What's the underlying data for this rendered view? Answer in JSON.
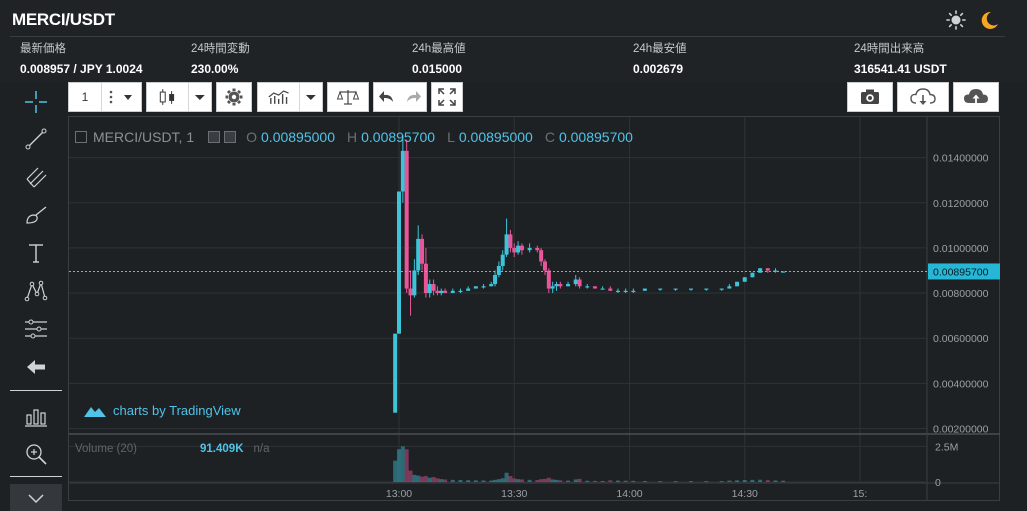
{
  "header": {
    "pair": "MERCI/USDT",
    "stats": [
      {
        "label": "最新価格",
        "value": "0.008957 / JPY 1.0024"
      },
      {
        "label": "24時間変動",
        "value": "230.00%"
      },
      {
        "label": "24h最高値",
        "value": "0.015000"
      },
      {
        "label": "24h最安値",
        "value": "0.002679"
      },
      {
        "label": "24時間出来高",
        "value": "316541.41 USDT"
      }
    ],
    "icons": [
      "sun-icon",
      "moon-icon"
    ]
  },
  "toolbar": {
    "interval_value": "1",
    "buttons": [
      "interval-select",
      "candle-style",
      "settings",
      "indicators",
      "compare",
      "undo",
      "redo",
      "fullscreen",
      "snapshot",
      "load-chart",
      "save-chart"
    ]
  },
  "left_tools": [
    "crosshair-icon",
    "trend-line-icon",
    "pitchfork-icon",
    "brush-icon",
    "text-icon",
    "pattern-icon",
    "measure-icon",
    "back-arrow-icon",
    "bar-chart-icon",
    "zoom-icon",
    "chevron-down-icon"
  ],
  "legend": {
    "symbol": "MERCI/USDT, 1",
    "o_label": "O",
    "o_value": "0.00895000",
    "h_label": "H",
    "h_value": "0.00895700",
    "l_label": "L",
    "l_value": "0.00895000",
    "c_label": "C",
    "c_value": "0.00895700"
  },
  "volume_legend": {
    "label": "Volume (20)",
    "value": "91.409K",
    "extra": "n/a"
  },
  "watermark": "charts by TradingView",
  "colors": {
    "up": "#3cc4d8",
    "down": "#e8569a",
    "grid": "#2e3236",
    "axis_text": "#9aa0a6",
    "price_line": "#4fc3e8"
  },
  "chart_data": {
    "type": "candlestick",
    "title": "MERCI/USDT, 1",
    "price_axis_ticks": [
      "0.01400000",
      "0.01200000",
      "0.01000000",
      "0.00800000",
      "0.00600000",
      "0.00400000",
      "0.00200000"
    ],
    "price_axis_range": [
      0.0018,
      0.0158
    ],
    "last_price_label": "0.00895700",
    "last_price": 0.008957,
    "volume_axis_ticks": [
      "2.5M",
      "0"
    ],
    "volume_axis_range": [
      0,
      3300000
    ],
    "time_axis_ticks": [
      "13:00",
      "13:30",
      "14:00",
      "14:30",
      "15:"
    ],
    "time_axis_start_minute": 780,
    "time_axis_end_minute": 901,
    "candles": [
      {
        "t": 779,
        "o": 0.0027,
        "h": 0.0062,
        "l": 0.0027,
        "c": 0.0062,
        "v": 1500000
      },
      {
        "t": 780,
        "o": 0.0062,
        "h": 0.0125,
        "l": 0.0062,
        "c": 0.0125,
        "v": 2300000
      },
      {
        "t": 781,
        "o": 0.0125,
        "h": 0.015,
        "l": 0.012,
        "c": 0.0143,
        "v": 2500000
      },
      {
        "t": 782,
        "o": 0.0143,
        "h": 0.0148,
        "l": 0.008,
        "c": 0.0082,
        "v": 2300000
      },
      {
        "t": 783,
        "o": 0.0082,
        "h": 0.009,
        "l": 0.007,
        "c": 0.0079,
        "v": 800000
      },
      {
        "t": 784,
        "o": 0.0079,
        "h": 0.0095,
        "l": 0.0078,
        "c": 0.009,
        "v": 500000
      },
      {
        "t": 785,
        "o": 0.009,
        "h": 0.011,
        "l": 0.0088,
        "c": 0.0104,
        "v": 450000
      },
      {
        "t": 786,
        "o": 0.0104,
        "h": 0.0106,
        "l": 0.009,
        "c": 0.0093,
        "v": 380000
      },
      {
        "t": 787,
        "o": 0.0093,
        "h": 0.01,
        "l": 0.0078,
        "c": 0.008,
        "v": 420000
      },
      {
        "t": 788,
        "o": 0.008,
        "h": 0.0086,
        "l": 0.0078,
        "c": 0.0084,
        "v": 300000
      },
      {
        "t": 789,
        "o": 0.0084,
        "h": 0.0086,
        "l": 0.0079,
        "c": 0.0081,
        "v": 350000
      },
      {
        "t": 790,
        "o": 0.0081,
        "h": 0.0083,
        "l": 0.0079,
        "c": 0.008,
        "v": 260000
      },
      {
        "t": 791,
        "o": 0.008,
        "h": 0.0082,
        "l": 0.0079,
        "c": 0.0081,
        "v": 200000
      },
      {
        "t": 792,
        "o": 0.0081,
        "h": 0.0082,
        "l": 0.008,
        "c": 0.008,
        "v": 180000
      },
      {
        "t": 794,
        "o": 0.008,
        "h": 0.0082,
        "l": 0.008,
        "c": 0.0081,
        "v": 150000
      },
      {
        "t": 796,
        "o": 0.0081,
        "h": 0.0082,
        "l": 0.008,
        "c": 0.0081,
        "v": 140000
      },
      {
        "t": 798,
        "o": 0.0081,
        "h": 0.0083,
        "l": 0.0081,
        "c": 0.0082,
        "v": 130000
      },
      {
        "t": 800,
        "o": 0.0082,
        "h": 0.0083,
        "l": 0.0082,
        "c": 0.0083,
        "v": 120000
      },
      {
        "t": 802,
        "o": 0.0083,
        "h": 0.0084,
        "l": 0.0082,
        "c": 0.0083,
        "v": 110000
      },
      {
        "t": 804,
        "o": 0.0083,
        "h": 0.0085,
        "l": 0.0083,
        "c": 0.0084,
        "v": 100000
      },
      {
        "t": 805,
        "o": 0.0084,
        "h": 0.009,
        "l": 0.0083,
        "c": 0.0088,
        "v": 150000
      },
      {
        "t": 806,
        "o": 0.0088,
        "h": 0.0094,
        "l": 0.0087,
        "c": 0.0092,
        "v": 200000
      },
      {
        "t": 807,
        "o": 0.0092,
        "h": 0.0099,
        "l": 0.009,
        "c": 0.0097,
        "v": 260000
      },
      {
        "t": 808,
        "o": 0.0097,
        "h": 0.0113,
        "l": 0.0096,
        "c": 0.0106,
        "v": 650000
      },
      {
        "t": 809,
        "o": 0.0106,
        "h": 0.0108,
        "l": 0.0098,
        "c": 0.01,
        "v": 420000
      },
      {
        "t": 810,
        "o": 0.01,
        "h": 0.0102,
        "l": 0.0096,
        "c": 0.0098,
        "v": 250000
      },
      {
        "t": 811,
        "o": 0.0098,
        "h": 0.0103,
        "l": 0.0097,
        "c": 0.0101,
        "v": 200000
      },
      {
        "t": 812,
        "o": 0.0101,
        "h": 0.0102,
        "l": 0.0097,
        "c": 0.0099,
        "v": 180000
      },
      {
        "t": 814,
        "o": 0.0099,
        "h": 0.0102,
        "l": 0.0098,
        "c": 0.01,
        "v": 150000
      },
      {
        "t": 816,
        "o": 0.01,
        "h": 0.0101,
        "l": 0.0098,
        "c": 0.0099,
        "v": 140000
      },
      {
        "t": 817,
        "o": 0.0099,
        "h": 0.01,
        "l": 0.0092,
        "c": 0.0094,
        "v": 200000
      },
      {
        "t": 818,
        "o": 0.0094,
        "h": 0.0095,
        "l": 0.0088,
        "c": 0.009,
        "v": 220000
      },
      {
        "t": 819,
        "o": 0.009,
        "h": 0.0091,
        "l": 0.008,
        "c": 0.0082,
        "v": 300000
      },
      {
        "t": 820,
        "o": 0.0082,
        "h": 0.0085,
        "l": 0.008,
        "c": 0.0083,
        "v": 180000
      },
      {
        "t": 821,
        "o": 0.0083,
        "h": 0.0085,
        "l": 0.0081,
        "c": 0.0084,
        "v": 150000
      },
      {
        "t": 822,
        "o": 0.0084,
        "h": 0.0085,
        "l": 0.0082,
        "c": 0.0083,
        "v": 120000
      },
      {
        "t": 824,
        "o": 0.0083,
        "h": 0.0085,
        "l": 0.0083,
        "c": 0.0084,
        "v": 100000
      },
      {
        "t": 826,
        "o": 0.0084,
        "h": 0.0088,
        "l": 0.0083,
        "c": 0.0086,
        "v": 180000
      },
      {
        "t": 827,
        "o": 0.0086,
        "h": 0.0087,
        "l": 0.0082,
        "c": 0.0083,
        "v": 220000
      },
      {
        "t": 829,
        "o": 0.0083,
        "h": 0.0084,
        "l": 0.0082,
        "c": 0.0083,
        "v": 90000
      },
      {
        "t": 831,
        "o": 0.0083,
        "h": 0.0083,
        "l": 0.0082,
        "c": 0.0082,
        "v": 80000
      },
      {
        "t": 833,
        "o": 0.0082,
        "h": 0.0083,
        "l": 0.0082,
        "c": 0.0082,
        "v": 70000
      },
      {
        "t": 835,
        "o": 0.0082,
        "h": 0.0083,
        "l": 0.0081,
        "c": 0.0081,
        "v": 120000
      },
      {
        "t": 837,
        "o": 0.0081,
        "h": 0.0082,
        "l": 0.008,
        "c": 0.0081,
        "v": 100000
      },
      {
        "t": 839,
        "o": 0.0081,
        "h": 0.0082,
        "l": 0.008,
        "c": 0.0081,
        "v": 90000
      },
      {
        "t": 841,
        "o": 0.0081,
        "h": 0.0082,
        "l": 0.008,
        "c": 0.0081,
        "v": 80000
      },
      {
        "t": 844,
        "o": 0.0081,
        "h": 0.0082,
        "l": 0.0081,
        "c": 0.0082,
        "v": 70000
      },
      {
        "t": 848,
        "o": 0.0082,
        "h": 0.0082,
        "l": 0.0081,
        "c": 0.0082,
        "v": 60000
      },
      {
        "t": 852,
        "o": 0.0082,
        "h": 0.0082,
        "l": 0.0081,
        "c": 0.0082,
        "v": 60000
      },
      {
        "t": 856,
        "o": 0.0082,
        "h": 0.0082,
        "l": 0.0081,
        "c": 0.0082,
        "v": 60000
      },
      {
        "t": 860,
        "o": 0.0082,
        "h": 0.0082,
        "l": 0.0081,
        "c": 0.0082,
        "v": 60000
      },
      {
        "t": 864,
        "o": 0.0082,
        "h": 0.0082,
        "l": 0.0081,
        "c": 0.0082,
        "v": 60000
      },
      {
        "t": 866,
        "o": 0.0082,
        "h": 0.0084,
        "l": 0.0082,
        "c": 0.0083,
        "v": 100000
      },
      {
        "t": 868,
        "o": 0.0083,
        "h": 0.0085,
        "l": 0.0083,
        "c": 0.0085,
        "v": 120000
      },
      {
        "t": 870,
        "o": 0.0085,
        "h": 0.0087,
        "l": 0.0085,
        "c": 0.0087,
        "v": 140000
      },
      {
        "t": 872,
        "o": 0.0087,
        "h": 0.0089,
        "l": 0.0087,
        "c": 0.0089,
        "v": 150000
      },
      {
        "t": 874,
        "o": 0.0089,
        "h": 0.0091,
        "l": 0.0089,
        "c": 0.0091,
        "v": 160000
      },
      {
        "t": 876,
        "o": 0.0091,
        "h": 0.0091,
        "l": 0.0089,
        "c": 0.009,
        "v": 130000
      },
      {
        "t": 878,
        "o": 0.009,
        "h": 0.0091,
        "l": 0.0089,
        "c": 0.009,
        "v": 110000
      },
      {
        "t": 880,
        "o": 0.00895,
        "h": 0.008957,
        "l": 0.00895,
        "c": 0.008957,
        "v": 91409
      }
    ]
  }
}
